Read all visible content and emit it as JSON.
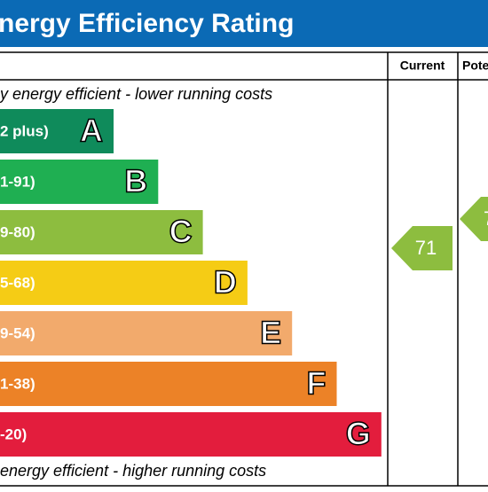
{
  "header": {
    "title": "nergy Efficiency Rating"
  },
  "columns": {
    "current": "Current",
    "potential": "Pote"
  },
  "top_note": "y energy efficient - lower running costs",
  "bottom_note": "energy efficient - higher running costs",
  "bands": [
    {
      "range": "2 plus)",
      "letter": "A",
      "color": "#0f8b5b"
    },
    {
      "range": "1-91)",
      "letter": "B",
      "color": "#1faf52"
    },
    {
      "range": "9-80)",
      "letter": "C",
      "color": "#8dbd3f"
    },
    {
      "range": "5-68)",
      "letter": "D",
      "color": "#f5cc15"
    },
    {
      "range": "9-54)",
      "letter": "E",
      "color": "#f2aa6c"
    },
    {
      "range": "1-38)",
      "letter": "F",
      "color": "#ec8227"
    },
    {
      "range": "-20)",
      "letter": "G",
      "color": "#e31d3d"
    }
  ],
  "current": {
    "value": 71,
    "color": "#8dbd3f"
  },
  "potential": {
    "label": "7",
    "color": "#8dbd3f"
  }
}
